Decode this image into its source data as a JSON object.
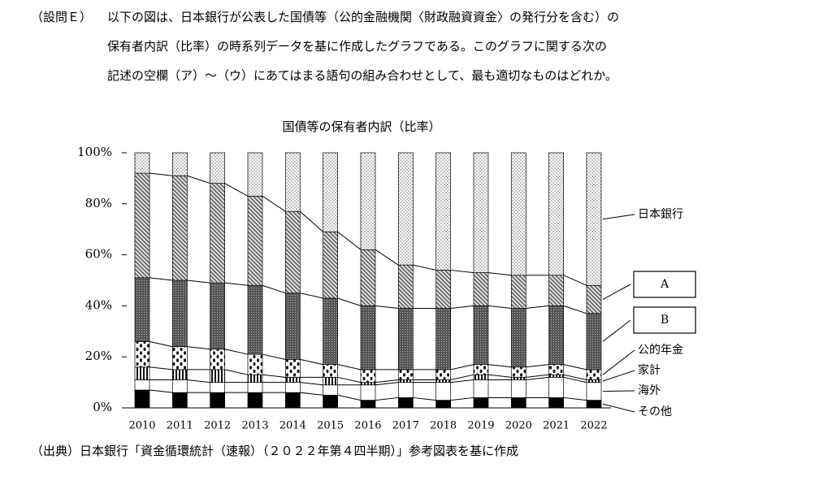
{
  "question": {
    "label": "（設問Ｅ）",
    "lines": [
      "以下の図は、日本銀行が公表した国債等（公的金融機関〈財政融資資金〉の発行分を含む）の",
      "保有者内訳（比率）の時系列データを基に作成したグラフである。このグラフに関する次の",
      "記述の空欄（ア）～（ウ）にあてはまる語句の組み合わせとして、最も適切なものはどれか。"
    ]
  },
  "chart_data": {
    "type": "stacked_bar",
    "title": "国債等の保有者内訳（比率）",
    "categories": [
      "2010",
      "2011",
      "2012",
      "2013",
      "2014",
      "2015",
      "2016",
      "2017",
      "2018",
      "2019",
      "2020",
      "2021",
      "2022"
    ],
    "series": [
      {
        "name": "その他",
        "color": "#000000",
        "pattern": "solid",
        "values": [
          7,
          6,
          6,
          6,
          6,
          5,
          3,
          4,
          3,
          4,
          4,
          4,
          3
        ]
      },
      {
        "name": "海外",
        "color": "#ffffff",
        "pattern": "solid",
        "values": [
          4,
          5,
          4,
          4,
          4,
          4,
          6,
          6,
          7,
          7,
          7,
          8,
          7
        ]
      },
      {
        "name": "家計",
        "color": "#000000",
        "pattern": "vstripe",
        "values": [
          5,
          4,
          5,
          3,
          2,
          3,
          1,
          1,
          1,
          2,
          1,
          1,
          1
        ]
      },
      {
        "name": "公的年金",
        "color": "#000000",
        "pattern": "blobs",
        "values": [
          10,
          9,
          8,
          8,
          7,
          5,
          5,
          4,
          4,
          4,
          4,
          4,
          4
        ]
      },
      {
        "name": "B",
        "color": "#6e6e6e",
        "pattern": "cross",
        "values": [
          25,
          26,
          26,
          27,
          26,
          26,
          25,
          24,
          24,
          23,
          23,
          23,
          22
        ]
      },
      {
        "name": "A",
        "color": "#8a8a8a",
        "pattern": "diag",
        "values": [
          41,
          41,
          39,
          35,
          32,
          26,
          22,
          17,
          15,
          13,
          13,
          12,
          11
        ]
      },
      {
        "name": "日本銀行",
        "color": "#9a9a9a",
        "pattern": "dots",
        "values": [
          8,
          9,
          12,
          17,
          23,
          31,
          38,
          44,
          46,
          47,
          48,
          48,
          52
        ]
      }
    ],
    "ylim": [
      0,
      100
    ],
    "yticks": [
      {
        "value": 0,
        "label": "0%"
      },
      {
        "value": 20,
        "label": "20%"
      },
      {
        "value": 40,
        "label": "40%"
      },
      {
        "value": 60,
        "label": "60%"
      },
      {
        "value": 80,
        "label": "80%"
      },
      {
        "value": 100,
        "label": "100%"
      }
    ],
    "boxed_legend": [
      "A",
      "B"
    ]
  },
  "source": "（出典）日本銀行「資金循環統計（速報）（２０２２年第４四半期）」参考図表を基に作成"
}
